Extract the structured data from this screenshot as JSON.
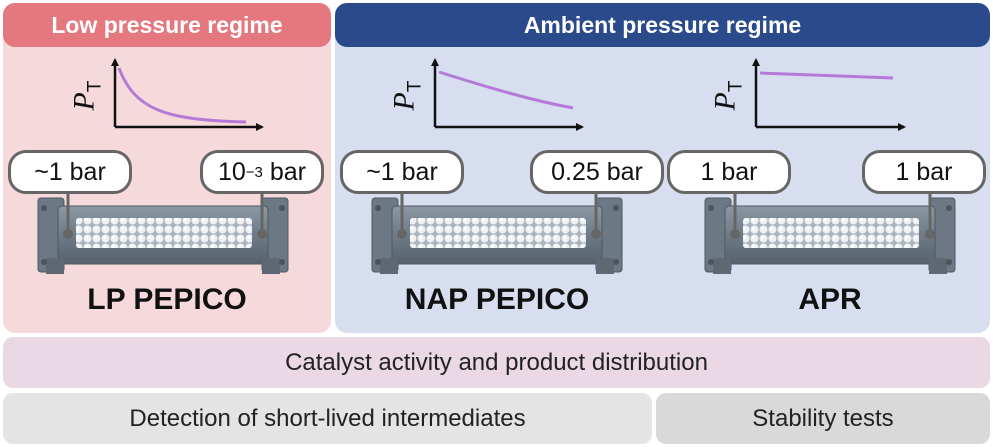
{
  "regimes": {
    "low": {
      "title": "Low pressure regime"
    },
    "ambient": {
      "title": "Ambient pressure regime"
    }
  },
  "axis_label": {
    "main": "P",
    "sub": "T"
  },
  "reactors": [
    {
      "name": "LP PEPICO",
      "inlet_pressure": "~1 bar",
      "outlet_pressure_base": "10",
      "outlet_pressure_exp": "−3",
      "outlet_pressure_unit": " bar"
    },
    {
      "name": "NAP PEPICO",
      "inlet_pressure": "~1 bar",
      "outlet_pressure": "0.25 bar"
    },
    {
      "name": "APR",
      "inlet_pressure": "1 bar",
      "outlet_pressure": "1 bar"
    }
  ],
  "bars": {
    "activity": "Catalyst activity and product distribution",
    "detection": "Detection of short-lived intermediates",
    "stability": "Stability tests"
  },
  "colors": {
    "low_header": "#e4787e",
    "low_panel": "#f6dadb",
    "ambient_header": "#2a4a8c",
    "ambient_panel": "#d6def0",
    "curve": "#b57ad8",
    "activity_bar": "#ead9e5",
    "detection_bar": "#e4e4e4",
    "stability_bar": "#d9d9d9"
  }
}
